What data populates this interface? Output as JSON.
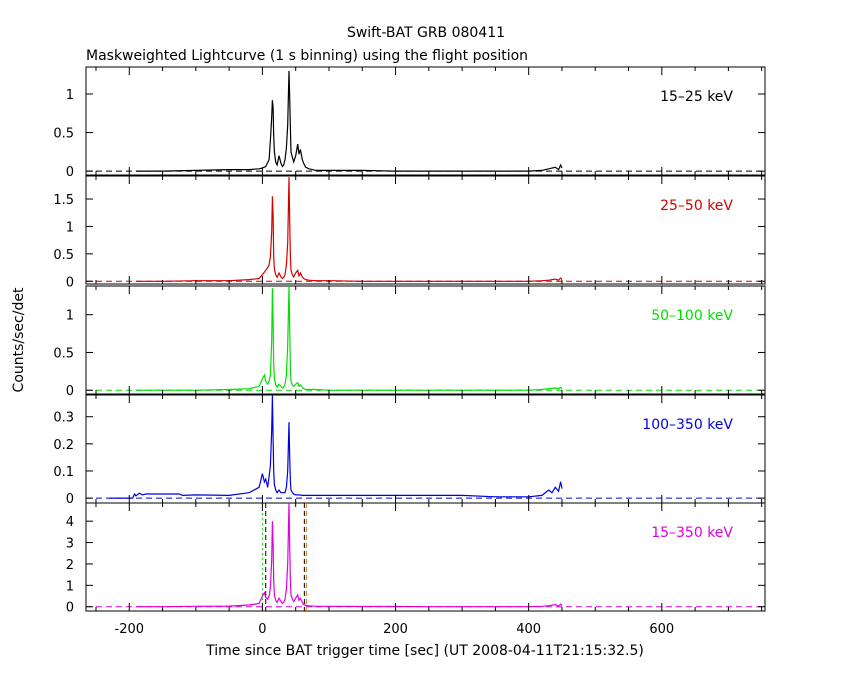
{
  "chart_data": {
    "type": "line",
    "title": "Swift-BAT GRB 080411",
    "subtitle": "Maskweighted Lightcurve (1 s binning) using the flight position",
    "xlabel": "Time since BAT trigger time [sec] (UT 2008-04-11T21:15:32.5)",
    "ylabel": "Counts/sec/det",
    "xlim": [
      -265,
      755
    ],
    "xticks": [
      -200,
      0,
      200,
      400,
      600
    ],
    "grid": false,
    "trigger_lines": [
      0,
      5,
      63
    ],
    "panels": [
      {
        "label": "15–25 keV",
        "color": "#000000",
        "ylim": [
          -0.05,
          1.35
        ],
        "yticks": [
          0,
          0.5,
          1
        ],
        "yticklabels": [
          "0",
          "0.5",
          "1"
        ],
        "series": {
          "x": [
            -190,
            -150,
            -100,
            -50,
            -20,
            -5,
            0,
            5,
            10,
            12,
            14,
            15,
            16,
            17,
            18,
            20,
            22,
            25,
            28,
            30,
            32,
            34,
            36,
            38,
            40,
            41,
            42,
            43,
            45,
            47,
            50,
            53,
            55,
            57,
            60,
            62,
            65,
            70,
            80,
            100,
            150,
            200,
            250,
            300,
            350,
            400,
            420,
            430,
            440,
            445,
            448,
            450
          ],
          "y": [
            0,
            0,
            0.01,
            0.02,
            0.02,
            0.03,
            0.04,
            0.06,
            0.15,
            0.4,
            0.7,
            0.92,
            0.82,
            0.45,
            0.25,
            0.12,
            0.08,
            0.2,
            0.1,
            0.06,
            0.08,
            0.15,
            0.3,
            0.6,
            1.3,
            0.95,
            0.55,
            0.25,
            0.18,
            0.12,
            0.2,
            0.35,
            0.22,
            0.28,
            0.15,
            0.1,
            0.05,
            0.03,
            0.01,
            0.01,
            0.01,
            0,
            0,
            0,
            0,
            0,
            0.01,
            0.03,
            0.05,
            0.02,
            0.08,
            0.04
          ]
        }
      },
      {
        "label": "25–50 keV",
        "color": "#d40000",
        "ylim": [
          -0.05,
          1.92
        ],
        "yticks": [
          0,
          0.5,
          1,
          1.5
        ],
        "yticklabels": [
          "0",
          "0.5",
          "1",
          "1.5"
        ],
        "series": {
          "x": [
            -190,
            -150,
            -100,
            -50,
            -20,
            -5,
            0,
            5,
            8,
            10,
            12,
            14,
            15,
            16,
            17,
            18,
            20,
            22,
            25,
            28,
            30,
            32,
            34,
            36,
            38,
            40,
            41,
            42,
            43,
            45,
            47,
            50,
            53,
            55,
            57,
            60,
            62,
            65,
            70,
            80,
            100,
            150,
            200,
            250,
            300,
            350,
            400,
            420,
            430,
            440,
            445,
            448,
            450
          ],
          "y": [
            0,
            0,
            0.01,
            0.01,
            0.03,
            0.05,
            0.12,
            0.2,
            0.25,
            0.3,
            0.45,
            0.9,
            1.55,
            1.2,
            0.45,
            0.22,
            0.12,
            0.07,
            0.15,
            0.08,
            0.05,
            0.07,
            0.12,
            0.3,
            0.7,
            1.9,
            1.1,
            0.45,
            0.2,
            0.12,
            0.08,
            0.15,
            0.2,
            0.1,
            0.15,
            0.08,
            0.05,
            0.03,
            0.02,
            0.01,
            0.01,
            0,
            0,
            0,
            0,
            0,
            0,
            0.01,
            0.02,
            0.04,
            0.02,
            0.06,
            0.03
          ]
        }
      },
      {
        "label": "50–100 keV",
        "color": "#00e000",
        "ylim": [
          -0.05,
          1.38
        ],
        "yticks": [
          0,
          0.5,
          1
        ],
        "yticklabels": [
          "0",
          "0.5",
          "1"
        ],
        "series": {
          "x": [
            -190,
            -150,
            -100,
            -50,
            -20,
            -5,
            0,
            3,
            5,
            8,
            10,
            12,
            14,
            15,
            16,
            17,
            18,
            20,
            22,
            25,
            28,
            30,
            32,
            34,
            36,
            38,
            40,
            41,
            42,
            43,
            45,
            47,
            50,
            53,
            55,
            57,
            60,
            62,
            65,
            70,
            80,
            100,
            150,
            200,
            250,
            300,
            350,
            400,
            420,
            430,
            440,
            445,
            448,
            450
          ],
          "y": [
            0,
            0,
            0,
            0.01,
            0.02,
            0.05,
            0.15,
            0.2,
            0.12,
            0.08,
            0.12,
            0.2,
            0.65,
            1.35,
            0.9,
            0.35,
            0.15,
            0.07,
            0.04,
            0.08,
            0.05,
            0.03,
            0.04,
            0.08,
            0.2,
            0.6,
            1.38,
            0.8,
            0.3,
            0.12,
            0.07,
            0.05,
            0.08,
            0.1,
            0.05,
            0.07,
            0.04,
            0.02,
            0.01,
            0.01,
            0.01,
            0,
            0,
            0,
            0,
            0,
            0,
            0,
            0.01,
            0.02,
            0.03,
            0.02,
            0.04,
            0.02
          ]
        }
      },
      {
        "label": "100–350 keV",
        "color": "#0000e0",
        "ylim": [
          -0.018,
          0.38
        ],
        "yticks": [
          0,
          0.1,
          0.2,
          0.3
        ],
        "yticklabels": [
          "0",
          "0.1",
          "0.2",
          "0.3"
        ],
        "series": {
          "x": [
            -230,
            -195,
            -192,
            -190,
            -185,
            -180,
            -175,
            -170,
            -160,
            -150,
            -130,
            -125,
            -120,
            -100,
            -50,
            -20,
            -5,
            0,
            3,
            5,
            8,
            10,
            12,
            14,
            15,
            16,
            17,
            18,
            20,
            22,
            25,
            28,
            30,
            32,
            34,
            36,
            38,
            40,
            41,
            42,
            43,
            45,
            47,
            50,
            55,
            60,
            65,
            70,
            80,
            100,
            150,
            200,
            250,
            300,
            350,
            400,
            420,
            430,
            435,
            440,
            445,
            448,
            450
          ],
          "y": [
            0,
            0,
            0.015,
            0.008,
            0.018,
            0.012,
            0.015,
            0.015,
            0.015,
            0.015,
            0.015,
            0.015,
            0.01,
            0.012,
            0.01,
            0.02,
            0.04,
            0.09,
            0.06,
            0.07,
            0.04,
            0.08,
            0.12,
            0.25,
            0.38,
            0.22,
            0.1,
            0.05,
            0.03,
            0.02,
            0.03,
            0.02,
            0.02,
            0.02,
            0.02,
            0.04,
            0.1,
            0.28,
            0.15,
            0.06,
            0.03,
            0.02,
            0.015,
            0.012,
            0.012,
            0.01,
            0.01,
            0.01,
            0.01,
            0.01,
            0.01,
            0.01,
            0.01,
            0.01,
            0.005,
            0.005,
            0.01,
            0.03,
            0.02,
            0.04,
            0.025,
            0.06,
            0.035
          ]
        }
      },
      {
        "label": "15–350 keV",
        "color": "#e000e0",
        "ylim": [
          -0.2,
          4.85
        ],
        "yticks": [
          0,
          1,
          2,
          3,
          4
        ],
        "yticklabels": [
          "0",
          "1",
          "2",
          "3",
          "4"
        ],
        "series": {
          "x": [
            -190,
            -150,
            -100,
            -50,
            -20,
            -5,
            0,
            3,
            5,
            8,
            10,
            12,
            14,
            15,
            16,
            17,
            18,
            20,
            22,
            25,
            28,
            30,
            32,
            34,
            36,
            38,
            40,
            41,
            42,
            43,
            45,
            47,
            50,
            53,
            55,
            57,
            60,
            62,
            65,
            70,
            80,
            100,
            150,
            200,
            250,
            300,
            350,
            400,
            420,
            430,
            440,
            445,
            448,
            450
          ],
          "y": [
            0,
            0,
            0.02,
            0.03,
            0.08,
            0.15,
            0.5,
            0.65,
            0.45,
            0.35,
            0.5,
            0.9,
            2.2,
            4.0,
            3.0,
            1.2,
            0.55,
            0.3,
            0.2,
            0.4,
            0.25,
            0.15,
            0.2,
            0.35,
            0.8,
            2.0,
            4.85,
            2.8,
            1.2,
            0.55,
            0.35,
            0.25,
            0.4,
            0.55,
            0.3,
            0.4,
            0.2,
            0.1,
            0.06,
            0.04,
            0.02,
            0.02,
            0.01,
            0.01,
            0,
            0,
            0,
            0,
            0.02,
            0.05,
            0.1,
            0.04,
            0.12,
            0.05
          ]
        }
      }
    ]
  }
}
